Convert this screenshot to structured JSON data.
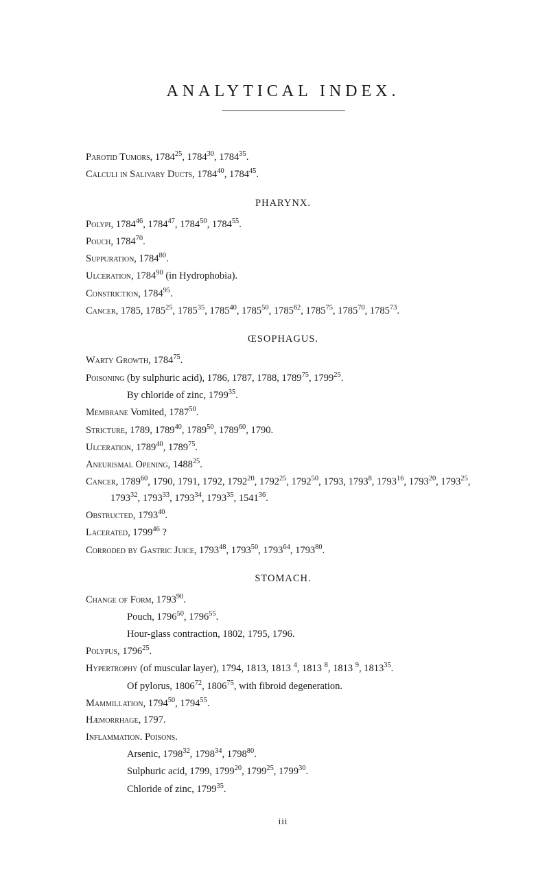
{
  "title": "ANALYTICAL  INDEX.",
  "entries_top": [
    "<span class=\"sc\">Parotid Tumors</span>, 1784<sup>25</sup>, 1784<sup>30</sup>, 1784<sup>35</sup>.",
    "<span class=\"sc\">Calculi in Salivary Ducts</span>, 1784<sup>40</sup>, 1784<sup>45</sup>."
  ],
  "section_pharynx": {
    "heading": "PHARYNX.",
    "entries": [
      "<span class=\"sc\">Polypi</span>, 1784<sup>46</sup>, 1784<sup>47</sup>, 1784<sup>50</sup>, 1784<sup>55</sup>.",
      "<span class=\"sc\">Pouch</span>, 1784<sup>70</sup>.",
      "<span class=\"sc\">Suppuration</span>, 1784<sup>80</sup>.",
      "<span class=\"sc\">Ulceration</span>, 1784<sup>90</sup> (in Hydrophobia).",
      "<span class=\"sc\">Constriction</span>, 1784<sup>95</sup>.",
      "<span class=\"sc\">Cancer</span>, 1785, 1785<sup>25</sup>, 1785<sup>35</sup>, 1785<sup>40</sup>, 1785<sup>50</sup>, 1785<sup>62</sup>, 1785<sup>75</sup>, 1785<sup>70</sup>, 1785<sup>73</sup>."
    ]
  },
  "section_oesophagus": {
    "heading": "ŒSOPHAGUS.",
    "entries": [
      "<span class=\"sc\">Warty Growth</span>, 1784<sup>75</sup>.",
      "<span class=\"sc\">Poisoning</span> (by sulphuric acid), 1786, 1787, 1788, 1789<sup>75</sup>, 1799<sup>25</sup>.",
      "__SUB__By chloride of zinc, 1799<sup>35</sup>.",
      "<span class=\"sc\">Membrane</span> Vomited, 1787<sup>50</sup>.",
      "<span class=\"sc\">Stricture</span>, 1789, 1789<sup>40</sup>, 1789<sup>50</sup>, 1789<sup>60</sup>, 1790.",
      "<span class=\"sc\">Ulceration</span>, 1789<sup>40</sup>, 1789<sup>75</sup>.",
      "<span class=\"sc\">Aneurismal Opening</span>, 1488<sup>25</sup>.",
      "<span class=\"sc\">Cancer</span>, 1789<sup>60</sup>, 1790, 1791, 1792, 1792<sup>20</sup>, 1792<sup>25</sup>, 1792<sup>50</sup>, 1793, 1793<sup>8</sup>, 1793<sup>16</sup>, 1793<sup>20</sup>, 1793<sup>25</sup>, 1793<sup>32</sup>, 1793<sup>33</sup>, 1793<sup>34</sup>, 1793<sup>35</sup>, 1541<sup>36</sup>.",
      "<span class=\"sc\">Obstructed</span>, 1793<sup>40</sup>.",
      "<span class=\"sc\">Lacerated</span>, 1799<sup>46</sup> ?",
      "<span class=\"sc\">Corroded by Gastric Juice</span>, 1793<sup>48</sup>, 1793<sup>50</sup>, 1793<sup>64</sup>, 1793<sup>80</sup>."
    ]
  },
  "section_stomach": {
    "heading": "STOMACH.",
    "entries": [
      "<span class=\"sc\">Change of Form</span>, 1793<sup>90</sup>.",
      "__SUB__Pouch, 1796<sup>50</sup>, 1796<sup>55</sup>.",
      "__SUB__Hour-glass contraction, 1802, 1795, 1796.",
      "<span class=\"sc\">Polypus</span>, 1796<sup>25</sup>.",
      "<span class=\"sc\">Hypertrophy</span> (of muscular layer), 1794, 1813, 1813 <sup>4</sup>, 1813 <sup>8</sup>, 1813 <sup>9</sup>, 1813<sup>35</sup>.",
      "__SUB__Of pylorus, 1806<sup>72</sup>, 1806<sup>75</sup>, with fibroid degeneration.",
      "<span class=\"sc\">Mammillation</span>, 1794<sup>50</sup>, 1794<sup>55</sup>.",
      "<span class=\"sc\">Hæmorrhage</span>, 1797.",
      "<span class=\"sc\">Inflammation.  Poisons.</span>",
      "__SUB__Arsenic, 1798<sup>32</sup>, 1798<sup>34</sup>, 1798<sup>80</sup>.",
      "__SUB__Sulphuric acid, 1799, 1799<sup>20</sup>, 1799<sup>25</sup>, 1799<sup>30</sup>.",
      "__SUB__Chloride of zinc, 1799<sup>35</sup>."
    ]
  },
  "page_number": "iii"
}
